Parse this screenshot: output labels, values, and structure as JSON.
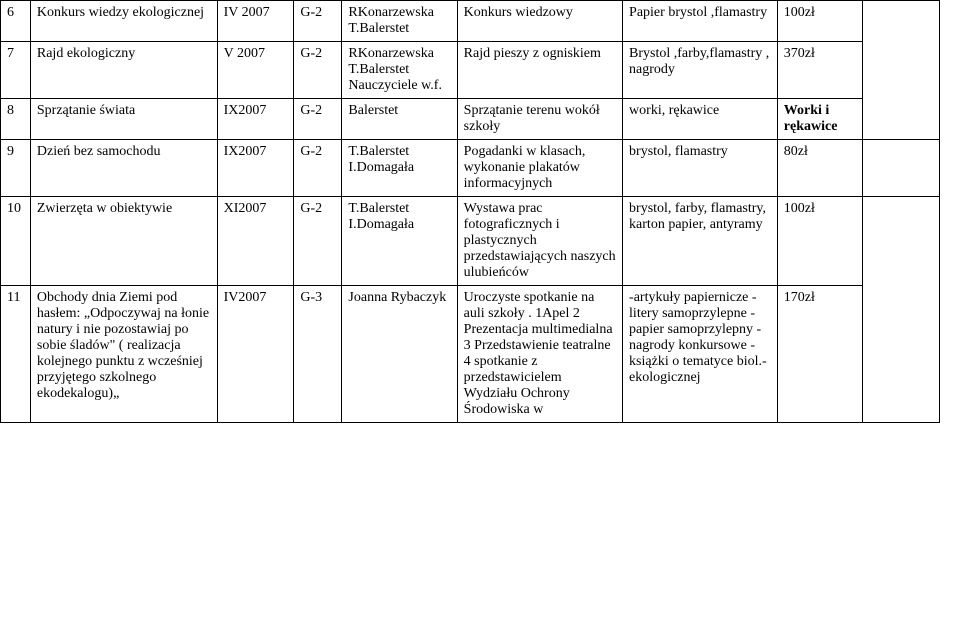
{
  "rows": [
    {
      "num": "6",
      "title": "Konkurs wiedzy ekologicznej",
      "date": "IV 2007",
      "group": "G-2",
      "organizer": "RKonarzewska T.Balerstet",
      "desc": "Konkurs wiedzowy",
      "materials": "Papier brystol ,flamastry",
      "cost": "100zł",
      "cost_bold": false,
      "extra": ""
    },
    {
      "num": "7",
      "title": "Rajd ekologiczny",
      "date": "V 2007",
      "group": "G-2",
      "organizer": "RKonarzewska T.Balerstet Nauczyciele w.f.",
      "desc": "Rajd pieszy z ogniskiem",
      "materials": "Brystol ,farby,flamastry , nagrody",
      "cost": "370zł",
      "cost_bold": false,
      "extra": ""
    },
    {
      "num": "8",
      "title": "Sprzątanie świata",
      "date": "IX2007",
      "group": "G-2",
      "organizer": "Balerstet",
      "desc": "Sprzątanie terenu wokół szkoły",
      "materials": "worki, rękawice",
      "cost": "Worki i rękawice",
      "cost_bold": true,
      "extra": ""
    },
    {
      "num": "9",
      "title": "Dzień bez samochodu",
      "date": "IX2007",
      "group": "G-2",
      "organizer": "T.Balerstet I.Domagała",
      "desc": "Pogadanki w klasach, wykonanie plakatów informacyjnych",
      "materials": "brystol, flamastry",
      "cost": "80zł",
      "cost_bold": false,
      "extra": ""
    },
    {
      "num": "10",
      "title": "Zwierzęta w obiektywie",
      "date": "XI2007",
      "group": "G-2",
      "organizer": "T.Balerstet I.Domagała",
      "desc": "Wystawa prac fotograficznych i plastycznych przedstawiających naszych ulubieńców",
      "materials": "brystol, farby, flamastry, karton papier, antyramy",
      "cost": "100zł",
      "cost_bold": false,
      "extra": ""
    },
    {
      "num": "11",
      "title": "Obchody dnia Ziemi pod hasłem: „Odpoczywaj na łonie natury i nie pozostawiaj po sobie śladów\" ( realizacja kolejnego punktu z wcześniej przyjętego szkolnego ekodekalogu)„",
      "date": "IV2007",
      "group": "G-3",
      "organizer": "Joanna Rybaczyk",
      "desc": "Uroczyste spotkanie na auli szkoły . 1Apel 2 Prezentacja multimedialna 3 Przedstawienie teatralne 4 spotkanie z przedstawicielem Wydziału Ochrony Środowiska w",
      "materials": "-artykuły papiernicze -litery samoprzylepne -papier samoprzylepny -nagrody konkursowe -książki o tematyce biol.- ekologicznej",
      "cost": "170zł",
      "cost_bold": false,
      "extra": ""
    }
  ]
}
